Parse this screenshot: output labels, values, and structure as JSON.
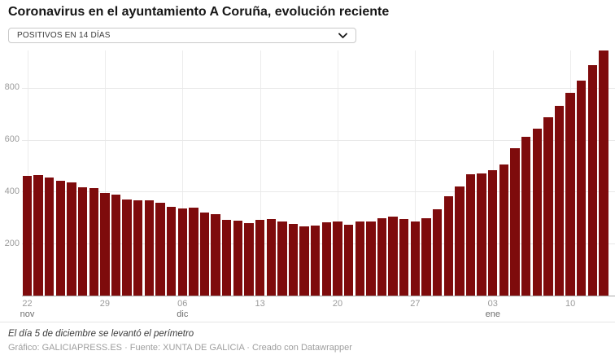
{
  "header": {
    "title": "Coronavirus en el ayuntamiento A Coruña, evolución reciente",
    "metric_selector": {
      "value": "POSITIVOS EN 14 DÍAS"
    }
  },
  "chart_data": {
    "type": "bar",
    "title": "Coronavirus en el ayuntamiento A Coruña, evolución reciente",
    "series_name": "Positivos en 14 días",
    "x": [
      "22 nov",
      "23 nov",
      "24 nov",
      "25 nov",
      "26 nov",
      "27 nov",
      "28 nov",
      "29 nov",
      "30 nov",
      "01 dic",
      "02 dic",
      "03 dic",
      "04 dic",
      "05 dic",
      "06 dic",
      "07 dic",
      "08 dic",
      "09 dic",
      "10 dic",
      "11 dic",
      "12 dic",
      "13 dic",
      "14 dic",
      "15 dic",
      "16 dic",
      "17 dic",
      "18 dic",
      "19 dic",
      "20 dic",
      "21 dic",
      "22 dic",
      "23 dic",
      "24 dic",
      "25 dic",
      "26 dic",
      "27 dic",
      "28 dic",
      "29 dic",
      "30 dic",
      "31 dic",
      "01 ene",
      "02 ene",
      "03 ene",
      "04 ene",
      "05 ene",
      "06 ene",
      "07 ene",
      "08 ene",
      "09 ene",
      "10 ene",
      "11 ene",
      "12 ene",
      "13 ene"
    ],
    "values": [
      461,
      463,
      454,
      441,
      435,
      417,
      414,
      395,
      389,
      371,
      367,
      366,
      358,
      342,
      335,
      337,
      321,
      312,
      293,
      288,
      280,
      292,
      294,
      285,
      277,
      267,
      270,
      282,
      284,
      273,
      285,
      286,
      297,
      303,
      296,
      286,
      298,
      331,
      382,
      421,
      467,
      470,
      483,
      505,
      566,
      612,
      643,
      685,
      731,
      779,
      827,
      887,
      942
    ],
    "y_axis": {
      "ticks": [
        200,
        400,
        600,
        800
      ],
      "range": [
        0,
        943
      ],
      "gridlines": true
    },
    "x_axis": {
      "ticks": [
        {
          "label": "22",
          "month": "nov",
          "index": 0
        },
        {
          "label": "29",
          "month": "",
          "index": 7
        },
        {
          "label": "06",
          "month": "dic",
          "index": 14
        },
        {
          "label": "13",
          "month": "",
          "index": 21
        },
        {
          "label": "20",
          "month": "",
          "index": 28
        },
        {
          "label": "27",
          "month": "",
          "index": 35
        },
        {
          "label": "03",
          "month": "ene",
          "index": 42
        },
        {
          "label": "10",
          "month": "",
          "index": 49
        }
      ]
    },
    "bar_color": "#7e0b0c",
    "grid_color": "#e8e8e8",
    "axis_text_color": "#9b9b9b",
    "baseline_color": "#ababab",
    "legend": "none"
  },
  "footer": {
    "note": "El día 5 de diciembre se levantó el perímetro",
    "byline": {
      "prefix_graphic": "Gráfico: ",
      "graphic_source": "GALICIAPRESS.ES",
      "sep1": " · ",
      "prefix_source": "Fuente: ",
      "data_source": "XUNTA DE GALICIA",
      "sep2": " · ",
      "created_with": "Creado con ",
      "tool_name": "Datawrapper"
    }
  }
}
